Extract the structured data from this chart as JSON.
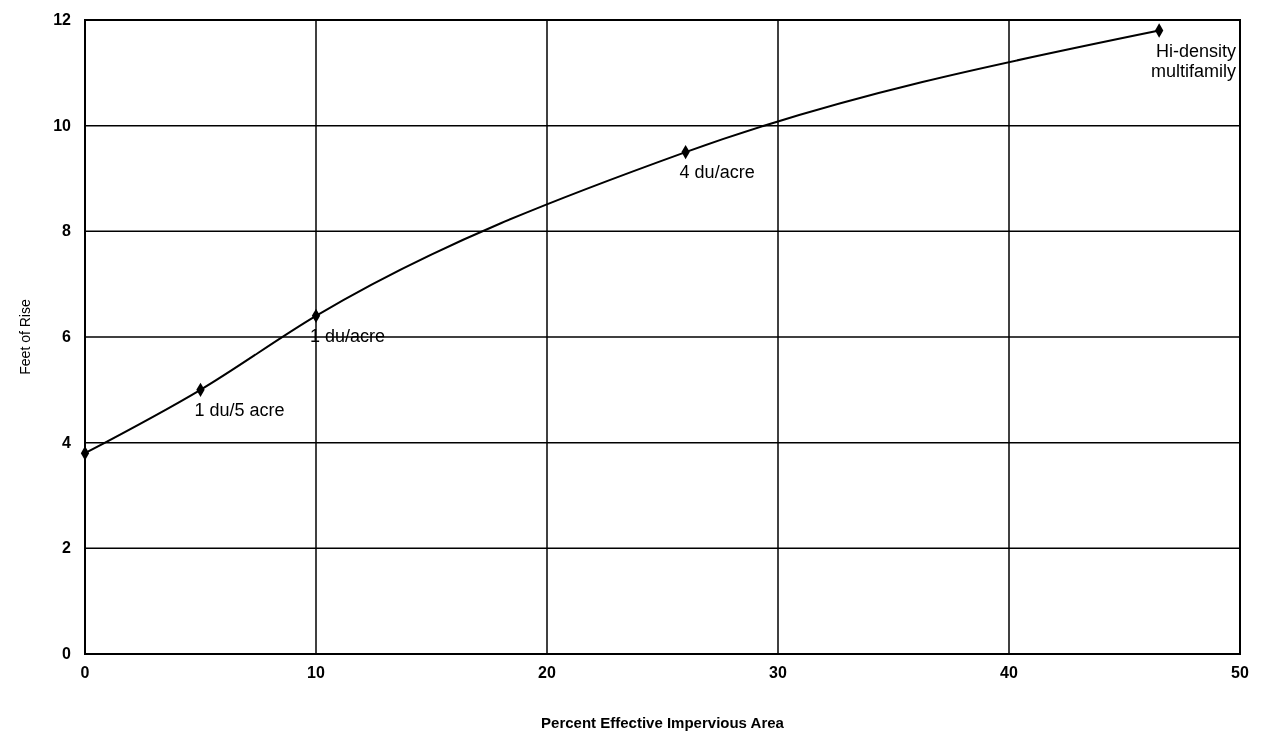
{
  "chart_data": {
    "type": "line",
    "xlabel": "Percent Effective Impervious Area",
    "ylabel": "Feet of Rise",
    "x": [
      0,
      5,
      10,
      26,
      46.5
    ],
    "series": [
      {
        "color": "#000000",
        "values": [
          3.8,
          5.0,
          6.4,
          9.5,
          11.8
        ]
      }
    ],
    "xlim": [
      0,
      50
    ],
    "xticks": [
      0,
      10,
      20,
      30,
      40,
      50
    ],
    "ylim": [
      0,
      12
    ],
    "yticks": [
      0,
      2,
      4,
      6,
      8,
      10,
      12
    ],
    "grid": true,
    "marker": "diamond",
    "line_style": "solid",
    "annotations": [
      {
        "text": "1 du/5 acre",
        "x": 5,
        "y": 5.0
      },
      {
        "text": "1 du/acre",
        "x": 10,
        "y": 6.4
      },
      {
        "text": "4 du/acre",
        "x": 26,
        "y": 9.5
      },
      {
        "text": "Hi-density multifamily",
        "x": 46.5,
        "y": 11.8
      }
    ]
  }
}
